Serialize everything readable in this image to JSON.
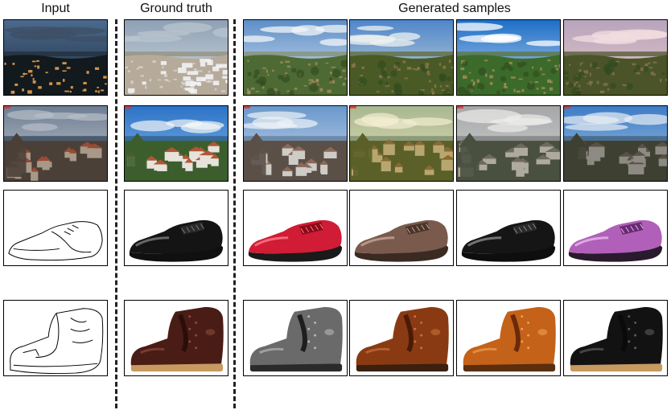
{
  "headers": {
    "input": "Input",
    "ground_truth": "Ground truth",
    "generated": "Generated samples"
  },
  "rows": [
    {
      "kind": "landscape",
      "input": {
        "sky_top": "#4a6a8e",
        "sky_bottom": "#1d2a3a",
        "cloud": "#3f4f66",
        "horizon": "#273545",
        "ground": "#121a1e",
        "accent": "#e8a050",
        "dark": true
      },
      "truth": {
        "sky_top": "#8ea0b4",
        "sky_bottom": "#d6dde2",
        "cloud": "#b8c4cf",
        "horizon": "#9a9a8e",
        "ground": "#b6aa9a",
        "accent": "#e8e8ee",
        "snow": true
      },
      "samples": [
        {
          "sky_top": "#5d8ec8",
          "sky_bottom": "#dde7ef",
          "cloud": "#f2f5f7",
          "horizon": "#8a9a88",
          "ground": "#4e6a34",
          "accent": "#c89a70"
        },
        {
          "sky_top": "#4f86cc",
          "sky_bottom": "#cfd9cf",
          "cloud": "#eef1f0",
          "horizon": "#6a7a5a",
          "ground": "#4a5a26",
          "accent": "#b08a62"
        },
        {
          "sky_top": "#1e6ec8",
          "sky_bottom": "#c2d7ee",
          "cloud": "#ffffff",
          "horizon": "#5e7e5e",
          "ground": "#3c6a2a",
          "accent": "#d6a070"
        },
        {
          "sky_top": "#b8a4bc",
          "sky_bottom": "#e6c8c8",
          "cloud": "#f2dde0",
          "horizon": "#6e6e52",
          "ground": "#4a5428",
          "accent": "#a08060"
        }
      ]
    },
    {
      "kind": "town",
      "input": {
        "sky_top": "#6d7e93",
        "sky_bottom": "#c8ccd0",
        "cloud": "#b6bec8",
        "sea": "#4a5c6e",
        "roof": "#9a4a34",
        "wall": "#a89888",
        "ground": "#4a4038"
      },
      "truth": {
        "sky_top": "#2c72c6",
        "sky_bottom": "#8cc0ea",
        "cloud": "#f4f6f8",
        "sea": "#37699a",
        "roof": "#b05636",
        "wall": "#e6e2dc",
        "ground": "#3c5e2c"
      },
      "samples": [
        {
          "sky_top": "#6a98cc",
          "sky_bottom": "#d0dced",
          "cloud": "#eef2f6",
          "sea": "#6d89a8",
          "roof": "#8a6a5a",
          "wall": "#cfcbc6",
          "ground": "#5a5048"
        },
        {
          "sky_top": "#a8b890",
          "sky_bottom": "#e8e0b8",
          "cloud": "#f2ecd0",
          "sea": "#8a9a7a",
          "roof": "#8a6a32",
          "wall": "#b8a670",
          "ground": "#5a6028"
        },
        {
          "sky_top": "#a4a6a8",
          "sky_bottom": "#d8d8d6",
          "cloud": "#ececea",
          "sea": "#8a8c8e",
          "roof": "#6e6a5e",
          "wall": "#aeab9e",
          "ground": "#4a5040"
        },
        {
          "sky_top": "#3e7cc4",
          "sky_bottom": "#a8c8e6",
          "cloud": "#e8eef4",
          "sea": "#4a6e8e",
          "roof": "#5a5046",
          "wall": "#8c8a82",
          "ground": "#3e4032"
        }
      ]
    },
    {
      "kind": "shoe",
      "input": {
        "sketch": true
      },
      "truth": {
        "upper": "#141414",
        "shine": "#7a7a7a",
        "sole": "#101010",
        "lace": "#2a2a2a"
      },
      "samples": [
        {
          "upper": "#d01c34",
          "shine": "#ff7a8a",
          "sole": "#1a1a1a",
          "lace": "#8a0a1a"
        },
        {
          "upper": "#7a5a4c",
          "shine": "#c4a696",
          "sole": "#3a2a22",
          "lace": "#4a342a"
        },
        {
          "upper": "#151515",
          "shine": "#8a8a8a",
          "sole": "#0e0e0e",
          "lace": "#2a2a2a"
        },
        {
          "upper": "#b060b8",
          "shine": "#e8b8ec",
          "sole": "#2a1a2e",
          "lace": "#6a2a72"
        }
      ]
    },
    {
      "kind": "boot",
      "input": {
        "sketch": true
      },
      "truth": {
        "upper": "#4a1c16",
        "shine": "#8a4a3e",
        "sole": "#c89a62",
        "lace": "#2a0e0a"
      },
      "samples": [
        {
          "upper": "#6a6a6a",
          "shine": "#b6b6b6",
          "sole": "#2a2a2a",
          "lace": "#1e1e1e"
        },
        {
          "upper": "#8a3a12",
          "shine": "#c47040",
          "sole": "#3a200e",
          "lace": "#4a1a08"
        },
        {
          "upper": "#c4621a",
          "shine": "#eea050",
          "sole": "#5a2e0e",
          "lace": "#6a2a0a"
        },
        {
          "upper": "#121212",
          "shine": "#5a5a5a",
          "sole": "#c69a60",
          "lace": "#0a0a0a"
        }
      ]
    }
  ]
}
